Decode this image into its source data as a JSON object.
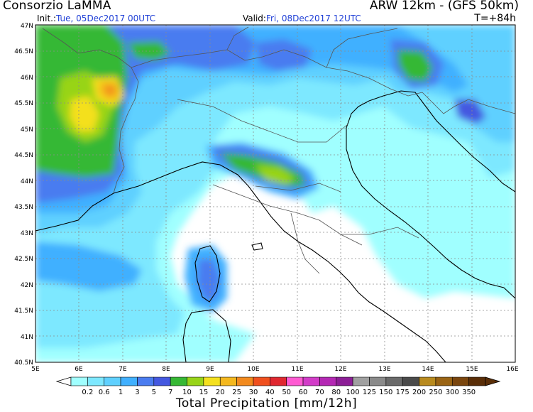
{
  "header": {
    "producer": "Consorzio LaMMA",
    "model": "ARW 12km - (GFS 50km)",
    "init_label": "Init.:",
    "init_value": "Tue, 05Dec2017 00UTC",
    "valid_label": "Valid:",
    "valid_value": "Fri, 08Dec2017 12UTC",
    "step": "T=+84h"
  },
  "axes": {
    "lon_ticks": [
      "5E",
      "6E",
      "7E",
      "8E",
      "9E",
      "10E",
      "11E",
      "12E",
      "13E",
      "14E",
      "15E",
      "16E"
    ],
    "lat_ticks": [
      "47N",
      "46.5N",
      "46N",
      "45.5N",
      "45N",
      "44.5N",
      "44N",
      "43.5N",
      "43N",
      "42.5N",
      "42N",
      "41.5N",
      "41N",
      "40.5N"
    ]
  },
  "legend": {
    "title": "Total Precipitation [mm/12h]",
    "levels": [
      "0.2",
      "0.6",
      "1",
      "3",
      "5",
      "7",
      "10",
      "15",
      "20",
      "25",
      "30",
      "40",
      "50",
      "60",
      "70",
      "80",
      "100",
      "125",
      "150",
      "175",
      "200",
      "250",
      "300",
      "350"
    ],
    "colors": [
      "#a0ffff",
      "#7de8ff",
      "#5fd0ff",
      "#41b0ff",
      "#4a7cf0",
      "#4458e0",
      "#36b834",
      "#98d418",
      "#f4e01e",
      "#f4b81e",
      "#f28a1e",
      "#f0501e",
      "#e02830",
      "#ff5ad2",
      "#d23cc8",
      "#b428b4",
      "#8c1e96",
      "#a0a0a0",
      "#8a8a8a",
      "#6a6a6a",
      "#4a4a4a",
      "#b88a1e",
      "#9a6414",
      "#7a460e",
      "#5a2e08"
    ]
  },
  "map_colors": {
    "c1": "#a0ffff",
    "c2": "#7de8ff",
    "c3": "#5fd0ff",
    "c4": "#41b0ff",
    "c5": "#4a7cf0",
    "c6": "#4458e0",
    "c7": "#36b834",
    "c8": "#98d418",
    "c9": "#f4e01e",
    "c10": "#f4b81e",
    "c11": "#f28a1e"
  }
}
